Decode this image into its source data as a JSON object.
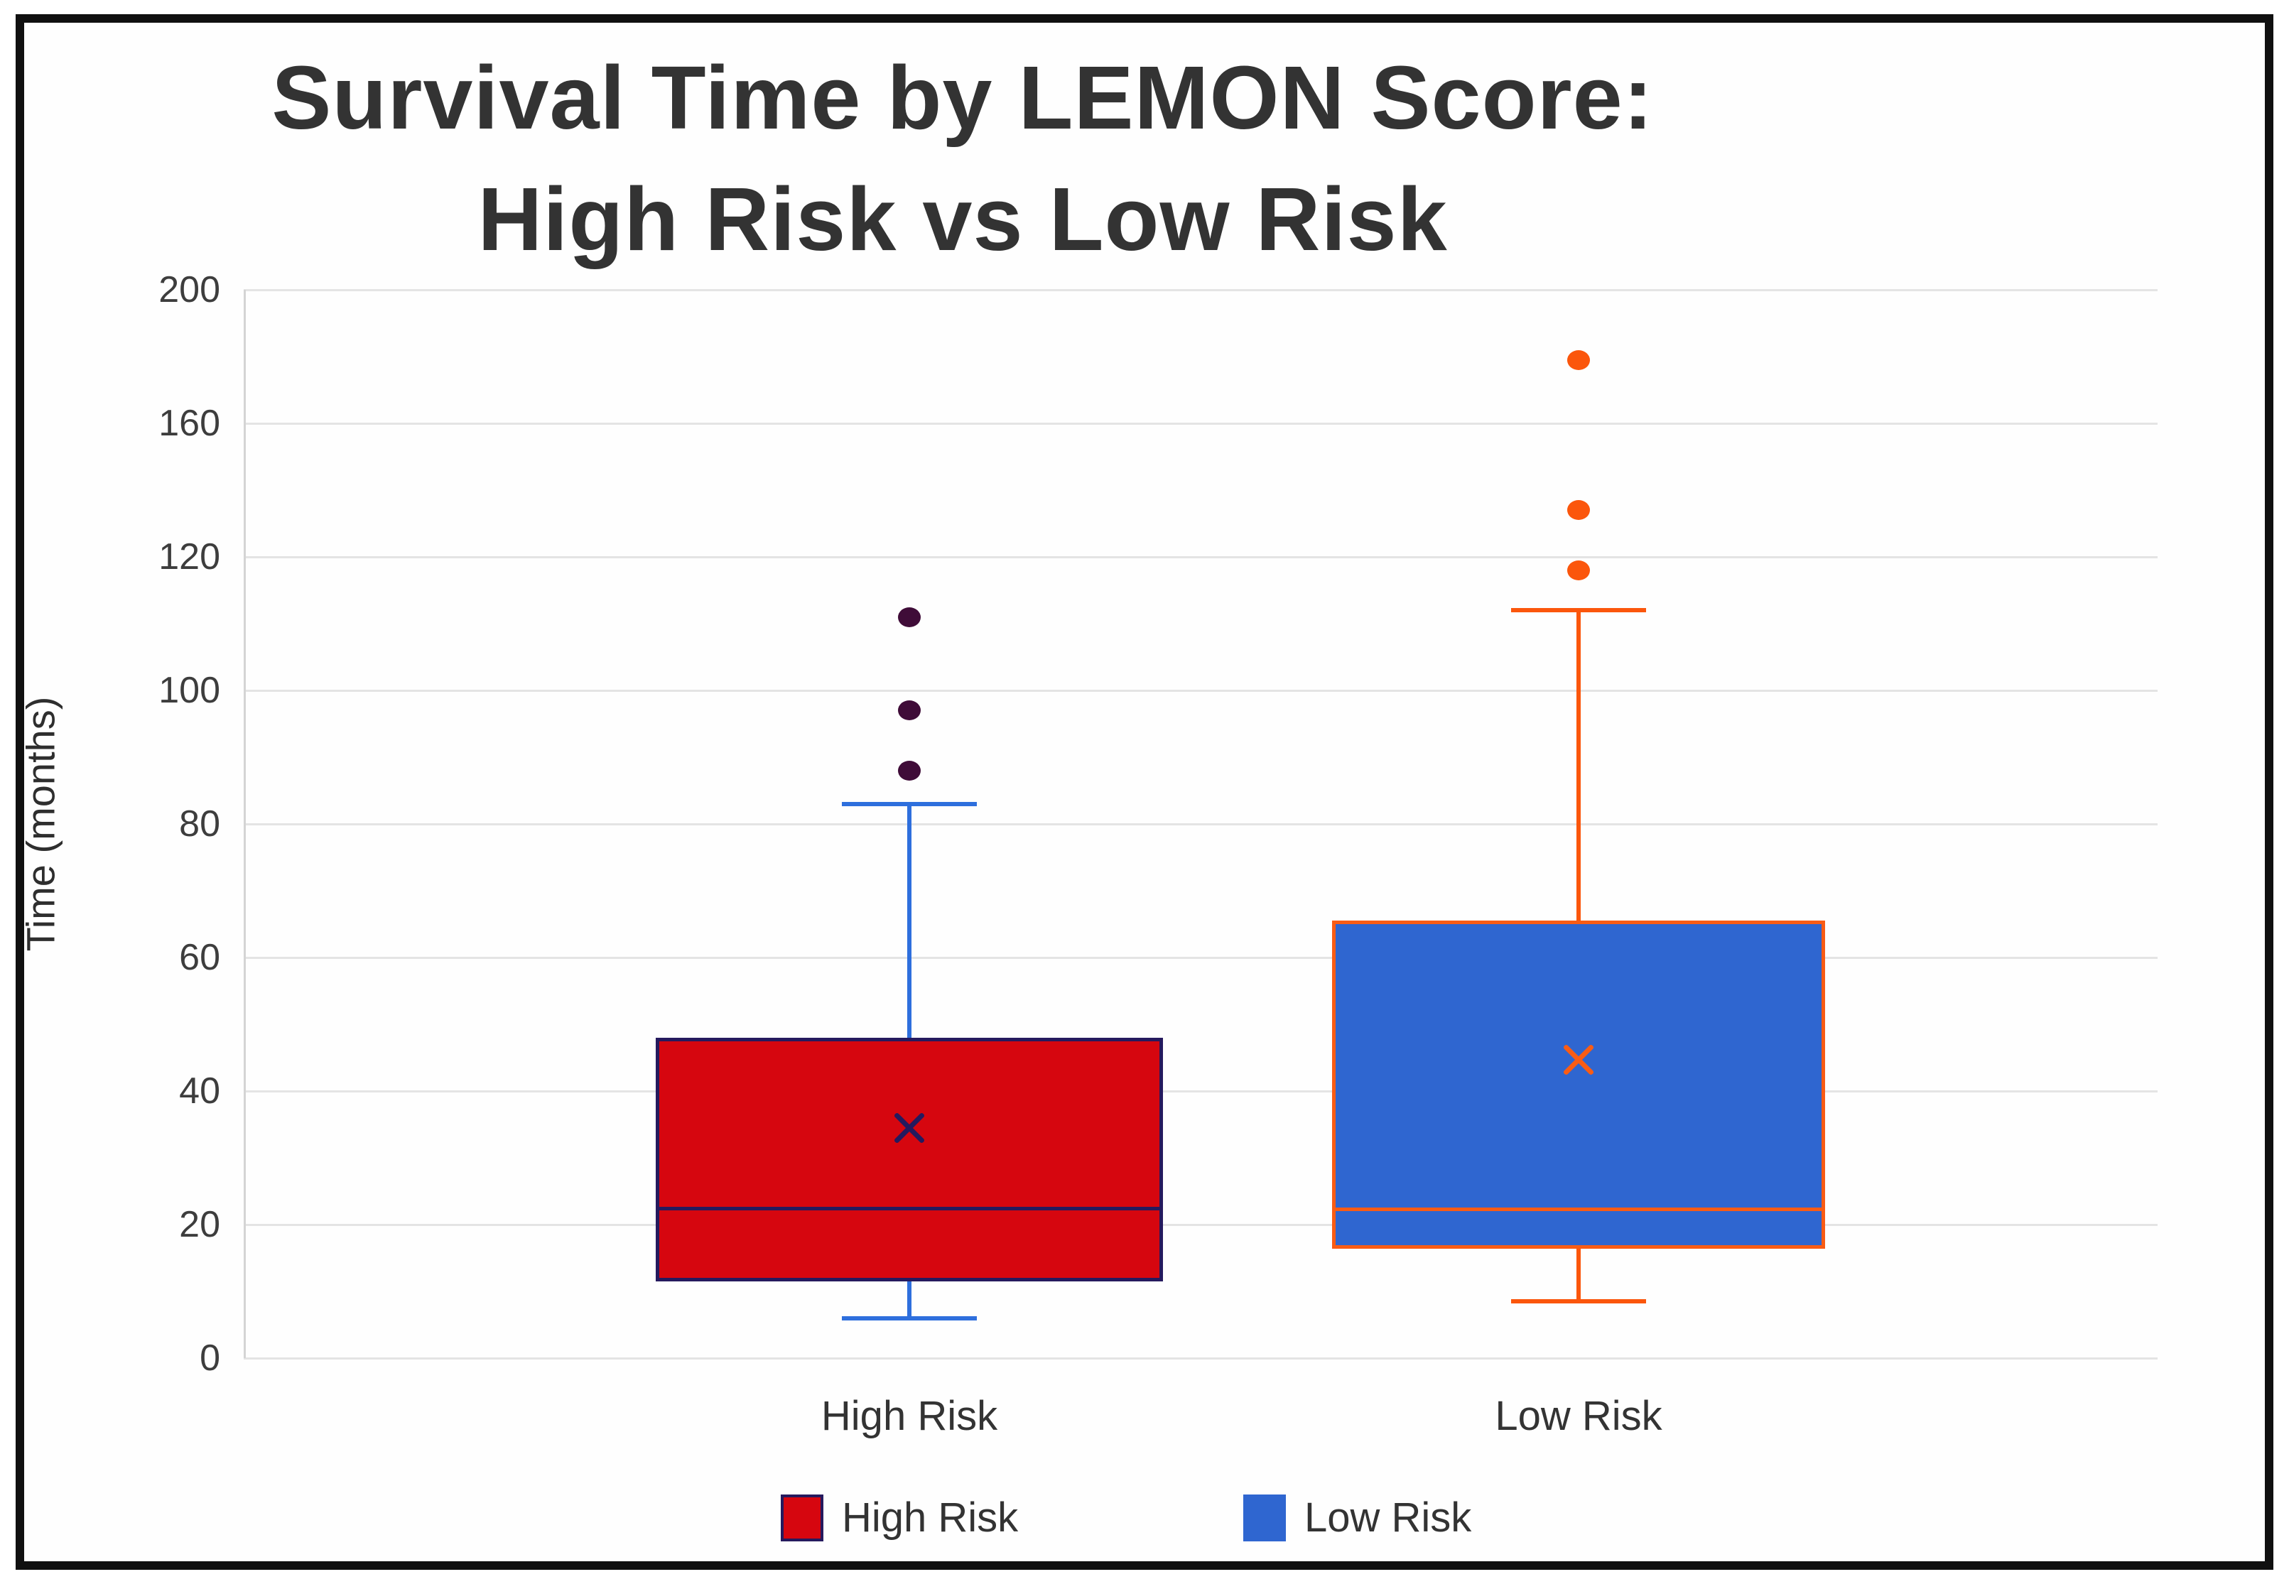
{
  "title": {
    "line1": "Survival Time by LEMON Score:",
    "line2": "High Risk vs Low Risk"
  },
  "y_axis": {
    "label": "Time (months)",
    "ticks": [
      0,
      20,
      40,
      60,
      80,
      100,
      120,
      160,
      200
    ]
  },
  "x_axis": {
    "categories": [
      "High Risk",
      "Low Risk"
    ]
  },
  "legend": [
    {
      "label": "High Risk",
      "color": "#d6060f",
      "border": "#251a5e"
    },
    {
      "label": "Low Risk",
      "color": "#2f66d0",
      "border": "#2f66d0"
    }
  ],
  "colors": {
    "frame": "#101010",
    "gridline": "#e4e4e4",
    "title_text": "#333333",
    "tick_text": "#3d3d3d"
  },
  "chart_data": {
    "type": "box",
    "title": "Survival Time by LEMON Score: High Risk vs Low Risk",
    "ylabel": "Time (months)",
    "xlabel": "",
    "y_ticks": [
      0,
      20,
      40,
      60,
      80,
      100,
      120,
      160,
      200
    ],
    "y_axis_note": "tick labels evenly spaced on axis; 120-160-200 intervals compressed",
    "grid": true,
    "legend_position": "bottom",
    "categories": [
      "High Risk",
      "Low Risk"
    ],
    "series": [
      {
        "name": "High Risk",
        "whisker_low": 6,
        "q1": 11.5,
        "median": 22.4,
        "q3": 48,
        "whisker_high": 83,
        "mean": 34.5,
        "outliers": [
          88,
          97,
          111
        ],
        "box_fill": "#d6060f",
        "box_border": "#251a5e",
        "median_color": "#251a5e",
        "mean_color": "#251a5e",
        "whisker_color": "#2e6fdd",
        "outlier_color": "#3f0c38"
      },
      {
        "name": "Low Risk",
        "whisker_low": 8.5,
        "q1": 16.4,
        "median": 22.3,
        "q3": 65.5,
        "whisker_high": 112,
        "mean": 44.7,
        "outliers": [
          118,
          134,
          179
        ],
        "box_fill": "#2f66d0",
        "box_border": "#f95c15",
        "median_color": "#f95c15",
        "mean_color": "#f95c15",
        "whisker_color": "#fb560c",
        "outlier_color": "#fb560c"
      }
    ]
  }
}
